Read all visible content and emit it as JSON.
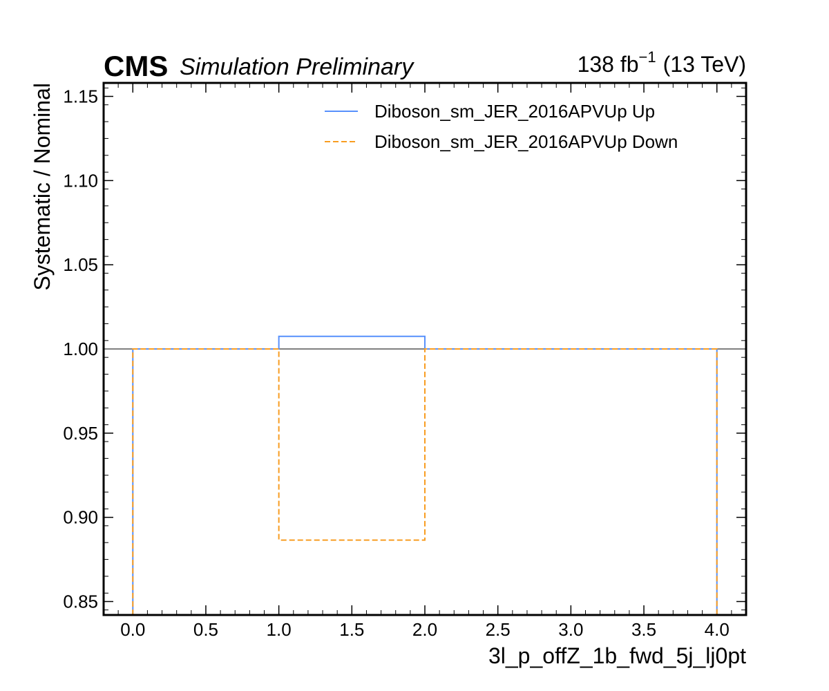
{
  "header": {
    "experiment": "CMS",
    "status": "Simulation Preliminary",
    "lumi_value": "138 fb",
    "lumi_exp": "−1",
    "lumi_energy": "(13 TeV)"
  },
  "chart_data": {
    "type": "line",
    "drawstyle": "steps",
    "xlabel": "3l_p_offZ_1b_fwd_5j_lj0pt",
    "ylabel": "Systematic / Nominal",
    "xlim": [
      -0.2,
      4.2
    ],
    "ylim": [
      0.842,
      1.158
    ],
    "xticks": [
      0.0,
      0.5,
      1.0,
      1.5,
      2.0,
      2.5,
      3.0,
      3.5,
      4.0
    ],
    "xtick_labels": [
      "0.0",
      "0.5",
      "1.0",
      "1.5",
      "2.0",
      "2.5",
      "3.0",
      "3.5",
      "4.0"
    ],
    "yticks": [
      0.85,
      0.9,
      0.95,
      1.0,
      1.05,
      1.1,
      1.15
    ],
    "ytick_labels": [
      "0.85",
      "0.90",
      "0.95",
      "1.00",
      "1.05",
      "1.10",
      "1.15"
    ],
    "reference_line": 1.0,
    "bin_edges": [
      0,
      1,
      2,
      3,
      4
    ],
    "series": [
      {
        "name": "Diboson_sm_JER_2016APVUp Up",
        "values": [
          1.0,
          1.0075,
          1.0,
          1.0
        ],
        "color": "#5790fc",
        "dash": "solid"
      },
      {
        "name": "Diboson_sm_JER_2016APVUp Down",
        "values": [
          1.0,
          0.8865,
          1.0,
          1.0
        ],
        "color": "#f89c20",
        "dash": "dashed"
      }
    ],
    "reference_color": "#7f7f7f",
    "grid": false,
    "legend_position": "top-right"
  }
}
